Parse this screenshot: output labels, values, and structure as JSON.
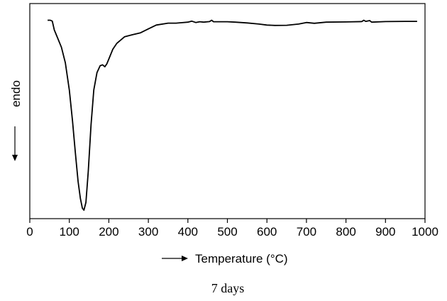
{
  "chart_data": {
    "type": "line",
    "xlabel": "Temperature (°C)",
    "ylabel": "endo",
    "caption": "7 days",
    "xlim": [
      0,
      1000
    ],
    "ylim": [
      0,
      100
    ],
    "x_ticks": [
      "0",
      "100",
      "200",
      "300",
      "400",
      "500",
      "600",
      "700",
      "800",
      "900",
      "1000"
    ],
    "y_ticks_shown": false,
    "grid": false,
    "series": [
      {
        "points": [
          [
            45,
            98
          ],
          [
            52,
            98
          ],
          [
            57,
            97.5
          ],
          [
            62,
            93
          ],
          [
            70,
            89
          ],
          [
            80,
            84
          ],
          [
            90,
            76
          ],
          [
            100,
            62
          ],
          [
            108,
            46
          ],
          [
            115,
            30
          ],
          [
            122,
            15
          ],
          [
            128,
            6
          ],
          [
            133,
            1
          ],
          [
            137,
            0
          ],
          [
            142,
            4
          ],
          [
            148,
            20
          ],
          [
            155,
            44
          ],
          [
            162,
            62
          ],
          [
            170,
            71
          ],
          [
            178,
            74.5
          ],
          [
            184,
            75
          ],
          [
            190,
            74
          ],
          [
            195,
            75.5
          ],
          [
            200,
            78
          ],
          [
            210,
            83
          ],
          [
            220,
            86
          ],
          [
            240,
            89.5
          ],
          [
            260,
            90.5
          ],
          [
            280,
            91.5
          ],
          [
            300,
            93.5
          ],
          [
            320,
            95.5
          ],
          [
            350,
            96.5
          ],
          [
            370,
            96.5
          ],
          [
            400,
            97
          ],
          [
            410,
            97.5
          ],
          [
            420,
            96.8
          ],
          [
            430,
            97.2
          ],
          [
            440,
            97
          ],
          [
            455,
            97.3
          ],
          [
            460,
            98
          ],
          [
            465,
            97.2
          ],
          [
            480,
            97.2
          ],
          [
            500,
            97.2
          ],
          [
            520,
            97
          ],
          [
            550,
            96.6
          ],
          [
            580,
            96
          ],
          [
            600,
            95.5
          ],
          [
            620,
            95.3
          ],
          [
            650,
            95.4
          ],
          [
            680,
            96
          ],
          [
            700,
            96.8
          ],
          [
            720,
            96.4
          ],
          [
            750,
            97
          ],
          [
            800,
            97.1
          ],
          [
            840,
            97.3
          ],
          [
            845,
            98
          ],
          [
            850,
            97.4
          ],
          [
            860,
            97.8
          ],
          [
            865,
            97
          ],
          [
            900,
            97.3
          ],
          [
            950,
            97.4
          ],
          [
            980,
            97.4
          ]
        ]
      }
    ]
  }
}
